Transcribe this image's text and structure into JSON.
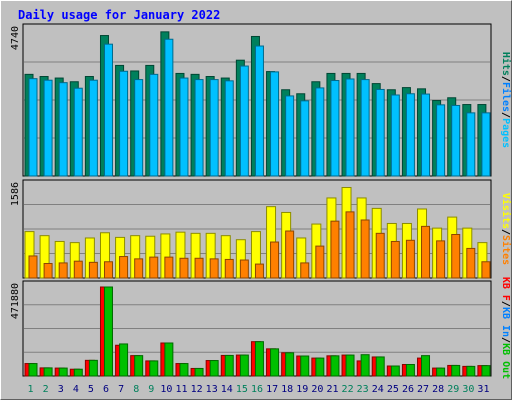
{
  "title": "Daily usage for January 2022",
  "colors": {
    "hits": "#00805c",
    "files": "#00c0ff",
    "pages": "#00c0ff",
    "visits": "#ffff00",
    "sites": "#ff8000",
    "kbin": "#0080ff",
    "kbout": "#00c000",
    "kbf": "#ff0000",
    "weekday_label": "#000080",
    "weekend_label": "#00805c",
    "panel_bg": "#c0c0c0",
    "grid": "#808080"
  },
  "chart_data": [
    {
      "type": "bar",
      "name": "hits-files-pages",
      "categories": [
        "1",
        "2",
        "3",
        "4",
        "5",
        "6",
        "7",
        "8",
        "9",
        "10",
        "11",
        "12",
        "13",
        "14",
        "15",
        "16",
        "17",
        "18",
        "19",
        "20",
        "21",
        "22",
        "23",
        "24",
        "25",
        "26",
        "27",
        "28",
        "29",
        "30",
        "31"
      ],
      "weekend_days": [
        "1",
        "2",
        "8",
        "9",
        "15",
        "16",
        "22",
        "23",
        "29",
        "30"
      ],
      "ymax_label": "4740",
      "ylim": [
        0,
        4740
      ],
      "legend": [
        {
          "label": "Hits",
          "color": "#00805c"
        },
        {
          "label": "/",
          "color": "#000000"
        },
        {
          "label": "Files",
          "color": "#0080ff"
        },
        {
          "label": "/",
          "color": "#000000"
        },
        {
          "label": "Pages",
          "color": "#00c0ff"
        }
      ],
      "series": [
        {
          "name": "Hits",
          "values": [
            3300,
            3230,
            3180,
            3060,
            3230,
            4560,
            3590,
            3410,
            3590,
            4680,
            3330,
            3300,
            3230,
            3180,
            3760,
            4530,
            3390,
            2800,
            2670,
            3060,
            3330,
            3330,
            3330,
            3000,
            2800,
            2870,
            2830,
            2450,
            2540,
            2320,
            2320
          ]
        },
        {
          "name": "Files",
          "values": [
            3160,
            3110,
            3030,
            2850,
            3110,
            4280,
            3400,
            3130,
            3300,
            4440,
            3180,
            3130,
            3130,
            3090,
            3570,
            4220,
            3380,
            2600,
            2440,
            2860,
            3100,
            3150,
            3130,
            2810,
            2630,
            2670,
            2660,
            2310,
            2290,
            2050,
            2050
          ]
        },
        {
          "name": "Pages",
          "values": [
            3160,
            3110,
            3030,
            2850,
            3110,
            4280,
            3400,
            3130,
            3300,
            4440,
            3180,
            3130,
            3130,
            3090,
            3570,
            4220,
            3380,
            2600,
            2440,
            2860,
            3100,
            3150,
            3130,
            2810,
            2630,
            2670,
            2660,
            2310,
            2290,
            2050,
            2050
          ]
        }
      ]
    },
    {
      "type": "bar",
      "name": "visits-sites",
      "categories": [
        "1",
        "2",
        "3",
        "4",
        "5",
        "6",
        "7",
        "8",
        "9",
        "10",
        "11",
        "12",
        "13",
        "14",
        "15",
        "16",
        "17",
        "18",
        "19",
        "20",
        "21",
        "22",
        "23",
        "24",
        "25",
        "26",
        "27",
        "28",
        "29",
        "30",
        "31"
      ],
      "ymax_label": "1586",
      "ylim": [
        0,
        1586
      ],
      "legend": [
        {
          "label": "Visits",
          "color": "#ffff00"
        },
        {
          "label": "/",
          "color": "#000000"
        },
        {
          "label": "Sites",
          "color": "#ff8000"
        }
      ],
      "series": [
        {
          "name": "Visits",
          "values": [
            800,
            730,
            630,
            610,
            690,
            780,
            700,
            730,
            720,
            760,
            790,
            770,
            770,
            730,
            660,
            800,
            1230,
            1130,
            690,
            930,
            1380,
            1560,
            1380,
            1200,
            940,
            940,
            1190,
            860,
            1050,
            860,
            610
          ]
        },
        {
          "name": "Sites",
          "values": [
            380,
            250,
            260,
            290,
            270,
            280,
            370,
            330,
            360,
            360,
            340,
            340,
            330,
            320,
            310,
            240,
            620,
            810,
            260,
            550,
            980,
            1140,
            1000,
            770,
            630,
            650,
            890,
            640,
            750,
            510,
            280
          ]
        }
      ]
    },
    {
      "type": "bar",
      "name": "kbf-kbin-kbout",
      "categories": [
        "1",
        "2",
        "3",
        "4",
        "5",
        "6",
        "7",
        "8",
        "9",
        "10",
        "11",
        "12",
        "13",
        "14",
        "15",
        "16",
        "17",
        "18",
        "19",
        "20",
        "21",
        "22",
        "23",
        "24",
        "25",
        "26",
        "27",
        "28",
        "29",
        "30",
        "31"
      ],
      "ymax_label": "471880",
      "ylim": [
        0,
        471880
      ],
      "legend": [
        {
          "label": "KB F",
          "color": "#ff0000"
        },
        {
          "label": "/",
          "color": "#000000"
        },
        {
          "label": "KB In",
          "color": "#0080ff"
        },
        {
          "label": "/",
          "color": "#000000"
        },
        {
          "label": "KB Out",
          "color": "#00c000"
        }
      ],
      "series": [
        {
          "name": "KB F",
          "values": [
            66000,
            43000,
            42000,
            36000,
            83000,
            471880,
            163000,
            108000,
            80000,
            175000,
            66000,
            40000,
            82000,
            109000,
            111000,
            182000,
            144000,
            123000,
            106000,
            95000,
            107000,
            111000,
            80000,
            101000,
            53000,
            61000,
            95000,
            42000,
            56000,
            51000,
            55000
          ]
        },
        {
          "name": "KB Out",
          "values": [
            66000,
            43000,
            42000,
            36000,
            83000,
            471880,
            170000,
            108000,
            80000,
            175000,
            66000,
            40000,
            82000,
            109000,
            111000,
            182000,
            144000,
            123000,
            106000,
            95000,
            107000,
            111000,
            113000,
            101000,
            53000,
            61000,
            108000,
            42000,
            56000,
            51000,
            55000
          ]
        }
      ]
    }
  ]
}
